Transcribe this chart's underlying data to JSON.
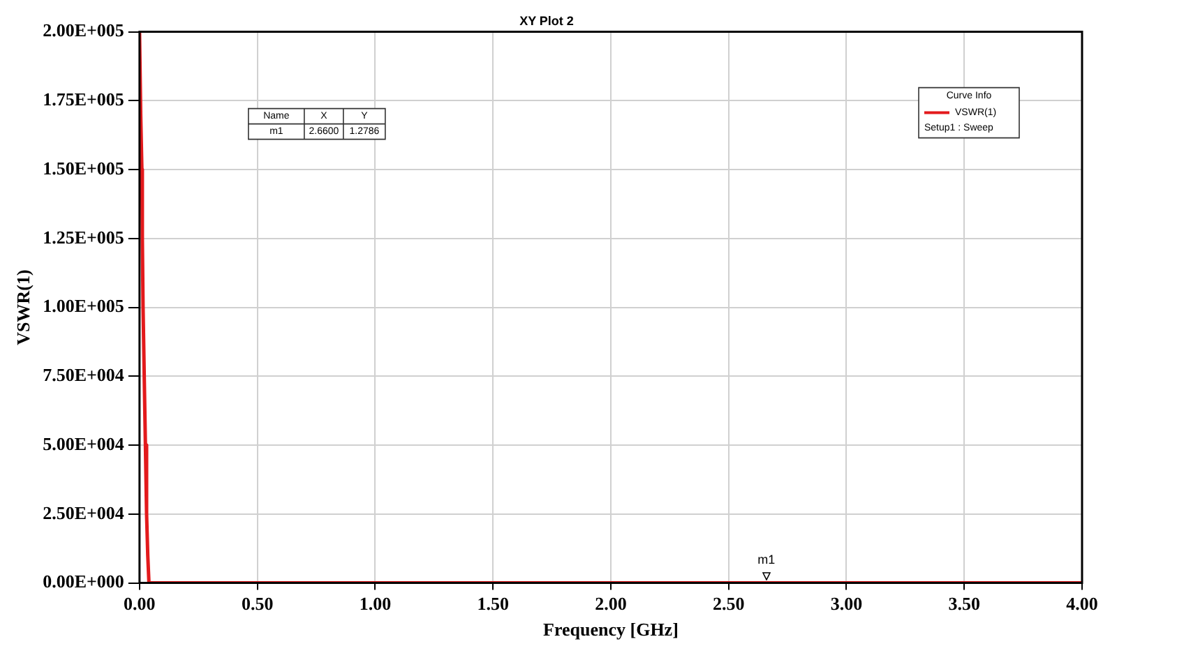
{
  "chart_data": {
    "type": "line",
    "title": "XY Plot 2",
    "xlabel": "Frequency [GHz]",
    "ylabel": "VSWR(1)",
    "legend_title": "Curve Info",
    "x": [
      0,
      0.005,
      0.01,
      0.012,
      0.015,
      0.02,
      0.025,
      0.03,
      0.035,
      0.04,
      2.66,
      4
    ],
    "series": [
      {
        "name": "VSWR(1)",
        "color": "#e31a1c",
        "values": [
          200000,
          170000,
          150000,
          125000,
          100000,
          75000,
          50000,
          25000,
          10000,
          0,
          0,
          0
        ]
      }
    ],
    "xlim": [
      0,
      4
    ],
    "xticks": [
      {
        "value": 0,
        "label": "0.00"
      },
      {
        "value": 0.5,
        "label": "0.50"
      },
      {
        "value": 1,
        "label": "1.00"
      },
      {
        "value": 1.5,
        "label": "1.50"
      },
      {
        "value": 2,
        "label": "2.00"
      },
      {
        "value": 2.5,
        "label": "2.50"
      },
      {
        "value": 3,
        "label": "3.00"
      },
      {
        "value": 3.5,
        "label": "3.50"
      },
      {
        "value": 4,
        "label": "4.00"
      }
    ],
    "ylim": [
      0,
      200000
    ],
    "yticks": [
      {
        "value": 0,
        "label": "0.00E+000"
      },
      {
        "value": 25000,
        "label": "2.50E+004"
      },
      {
        "value": 50000,
        "label": "5.00E+004"
      },
      {
        "value": 75000,
        "label": "7.50E+004"
      },
      {
        "value": 100000,
        "label": "1.00E+005"
      },
      {
        "value": 125000,
        "label": "1.25E+005"
      },
      {
        "value": 150000,
        "label": "1.50E+005"
      },
      {
        "value": 175000,
        "label": "1.75E+005"
      },
      {
        "value": 200000,
        "label": "2.00E+005"
      }
    ],
    "grid": true,
    "legend": "top right",
    "marker": "none",
    "line_style": "solid",
    "annotations": [
      {
        "text": "m1",
        "x": 2.66,
        "y": 0
      },
      "Name",
      "X",
      "Y",
      "m1",
      "2.6600",
      "1.2786",
      "Setup1 : Sweep"
    ]
  }
}
